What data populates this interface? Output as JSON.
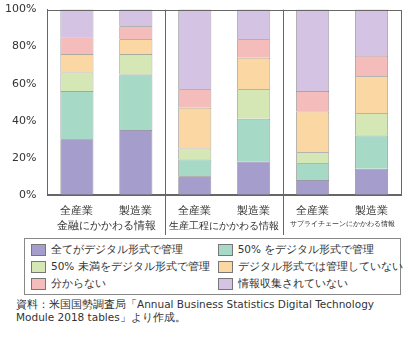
{
  "chart_data": {
    "type": "bar",
    "stacked": true,
    "categories": [
      "全産業",
      "製造業",
      "全産業",
      "製造業",
      "全産業",
      "製造業"
    ],
    "category_groups": [
      "金融にかかわる情報",
      "生産工程にかかわる情報",
      "サプライチェーンにかかわる情報"
    ],
    "series": [
      {
        "name": "全てがデジタル形式で管理",
        "color": "#a59dcb",
        "values": [
          30,
          35,
          10,
          18,
          8,
          14
        ]
      },
      {
        "name": "50% をデジタル形式で管理",
        "color": "#a6dac6",
        "values": [
          26,
          30,
          9,
          23,
          9,
          18
        ]
      },
      {
        "name": "50% 未満をデジタル形式で管理",
        "color": "#d6e7b6",
        "values": [
          10,
          11,
          6,
          16,
          6,
          12
        ]
      },
      {
        "name": "デジタル形式では管理していない",
        "color": "#fbd7a3",
        "values": [
          10,
          8,
          22,
          17,
          22,
          20
        ]
      },
      {
        "name": "分からない",
        "color": "#f5bcbc",
        "values": [
          9,
          7,
          10,
          10,
          11,
          11
        ]
      },
      {
        "name": "情報収集されていない",
        "color": "#d4c3e2",
        "values": [
          15,
          9,
          43,
          16,
          44,
          25
        ]
      }
    ],
    "ylim": [
      0,
      100
    ],
    "yticks": [
      {
        "value": 0,
        "label": "0%"
      },
      {
        "value": 20,
        "label": "20%"
      },
      {
        "value": 40,
        "label": "40%"
      },
      {
        "value": 60,
        "label": "60%"
      },
      {
        "value": 80,
        "label": "80%"
      },
      {
        "value": 100,
        "label": "100%"
      }
    ],
    "grid": false,
    "legend": "bottom",
    "source": "資料：米国国勢調査局「Annual Business Statistics Digital Technology Module 2018 tables」より作成。"
  }
}
